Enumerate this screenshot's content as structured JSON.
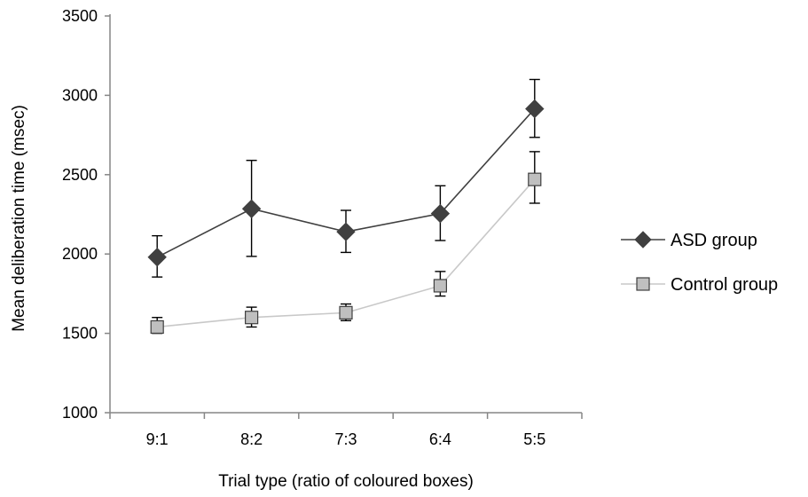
{
  "chart_data": {
    "type": "line",
    "title": "",
    "xlabel": "Trial type (ratio of coloured boxes)",
    "ylabel": "Mean deliberation time (msec)",
    "categories": [
      "9:1",
      "8:2",
      "7:3",
      "6:4",
      "5:5"
    ],
    "ylim": [
      1000,
      3500
    ],
    "yticks": [
      1000,
      1500,
      2000,
      2500,
      3000,
      3500
    ],
    "grid": false,
    "legend_position": "right",
    "series": [
      {
        "name": "ASD group",
        "marker": "diamond",
        "marker_color": "#404040",
        "line_color": "#404040",
        "values": [
          1980,
          2285,
          2140,
          2255,
          2915
        ],
        "error_low": [
          1855,
          1985,
          2010,
          2085,
          2735
        ],
        "error_high": [
          2115,
          2590,
          2275,
          2430,
          3100
        ]
      },
      {
        "name": "Control group",
        "marker": "square",
        "marker_color": "#bfbfbf",
        "line_color": "#c8c8c8",
        "values": [
          1540,
          1600,
          1630,
          1800,
          2470
        ],
        "error_low": [
          1500,
          1540,
          1580,
          1735,
          2320
        ],
        "error_high": [
          1600,
          1665,
          1685,
          1890,
          2645
        ]
      }
    ]
  }
}
